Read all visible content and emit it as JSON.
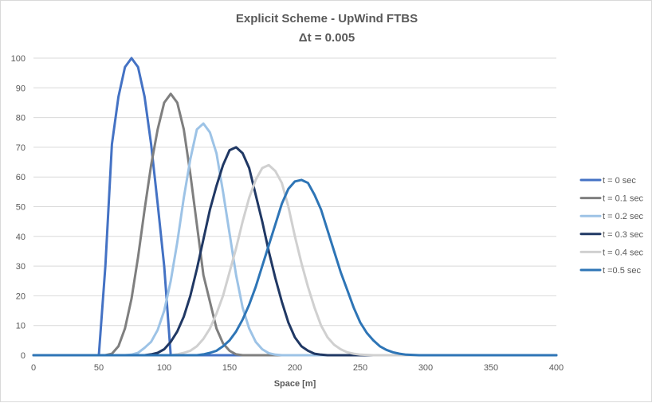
{
  "chart_data": {
    "type": "line",
    "title": "Explicit Scheme - UpWind FTBS",
    "subtitle": "Δt = 0.005",
    "xlabel": "Space [m]",
    "ylabel": "",
    "xlim": [
      0,
      400
    ],
    "ylim": [
      0,
      100
    ],
    "x_ticks": [
      "0",
      "50",
      "100",
      "150",
      "200",
      "250",
      "300",
      "350",
      "400"
    ],
    "y_ticks": [
      "0",
      "10",
      "20",
      "30",
      "40",
      "50",
      "60",
      "70",
      "80",
      "90",
      "100"
    ],
    "grid": "horizontal",
    "legend_position": "right",
    "series": [
      {
        "name": "t = 0 sec",
        "color": "#4472c4",
        "x": [
          0,
          50,
          55,
          60,
          65,
          70,
          75,
          80,
          85,
          90,
          95,
          100,
          105,
          110,
          400
        ],
        "y": [
          0,
          0,
          30,
          71,
          87,
          97,
          100,
          97,
          87,
          71,
          51,
          30,
          0,
          0,
          0
        ]
      },
      {
        "name": "t = 0.1 sec",
        "color": "#7f7f7f",
        "x": [
          0,
          55,
          60,
          65,
          70,
          75,
          80,
          85,
          90,
          95,
          100,
          105,
          110,
          115,
          120,
          125,
          130,
          135,
          140,
          145,
          150,
          155,
          160,
          400
        ],
        "y": [
          0,
          0,
          0.5,
          3,
          9,
          19,
          33,
          49,
          64,
          76,
          85,
          88,
          85,
          76,
          61,
          44,
          27,
          18,
          9,
          4,
          1.5,
          0.3,
          0,
          0
        ]
      },
      {
        "name": "t = 0.2 sec",
        "color": "#9dc3e6",
        "x": [
          0,
          70,
          75,
          80,
          85,
          90,
          95,
          100,
          105,
          110,
          115,
          120,
          125,
          130,
          135,
          140,
          145,
          150,
          155,
          160,
          165,
          170,
          175,
          180,
          185,
          190,
          400
        ],
        "y": [
          0,
          0,
          0.2,
          0.8,
          2.5,
          4.5,
          8.5,
          15,
          25,
          38,
          53,
          66,
          76,
          78,
          75,
          68,
          55,
          41,
          27,
          16,
          9,
          4.5,
          2,
          0.7,
          0.2,
          0,
          0
        ]
      },
      {
        "name": "t = 0.3 sec",
        "color": "#203864",
        "x": [
          0,
          85,
          90,
          95,
          100,
          105,
          110,
          115,
          120,
          125,
          130,
          135,
          140,
          145,
          150,
          155,
          160,
          165,
          170,
          175,
          180,
          185,
          190,
          195,
          200,
          205,
          210,
          215,
          220,
          225,
          230,
          400
        ],
        "y": [
          0,
          0,
          0.3,
          0.8,
          2,
          4.5,
          8,
          13,
          20,
          29,
          39,
          49,
          57,
          64,
          69,
          70,
          68,
          63,
          54,
          45,
          35,
          26,
          18,
          11,
          6,
          3,
          1.5,
          0.5,
          0.2,
          0,
          0,
          0
        ]
      },
      {
        "name": "t = 0.4 sec",
        "color": "#d0d0d0",
        "x": [
          0,
          105,
          110,
          115,
          120,
          125,
          130,
          135,
          140,
          145,
          150,
          155,
          160,
          165,
          170,
          175,
          180,
          185,
          190,
          195,
          200,
          205,
          210,
          215,
          220,
          225,
          230,
          235,
          240,
          245,
          250,
          255,
          260,
          265,
          270,
          400
        ],
        "y": [
          0,
          0,
          0.3,
          0.8,
          1.5,
          3,
          5.5,
          9,
          14,
          20,
          28,
          36,
          45,
          53,
          59,
          63,
          64,
          62,
          58,
          50,
          40,
          31,
          23,
          16,
          10,
          6,
          3.5,
          2,
          1,
          0.5,
          0.2,
          0.1,
          0,
          0,
          0,
          0
        ]
      },
      {
        "name": "t =0.5 sec",
        "color": "#2e75b6",
        "x": [
          0,
          125,
          130,
          135,
          140,
          145,
          150,
          155,
          160,
          165,
          170,
          175,
          180,
          185,
          190,
          195,
          200,
          205,
          210,
          215,
          220,
          225,
          230,
          235,
          240,
          245,
          250,
          255,
          260,
          265,
          270,
          275,
          280,
          285,
          290,
          295,
          300,
          400
        ],
        "y": [
          0,
          0,
          0.3,
          0.8,
          1.5,
          3,
          5,
          8,
          12,
          17,
          23,
          30,
          37,
          44,
          51,
          56,
          58.5,
          59,
          58,
          54,
          49,
          42,
          35,
          28,
          22,
          16,
          11,
          7.5,
          5,
          3,
          1.8,
          1,
          0.5,
          0.2,
          0.1,
          0,
          0,
          0
        ]
      }
    ]
  }
}
